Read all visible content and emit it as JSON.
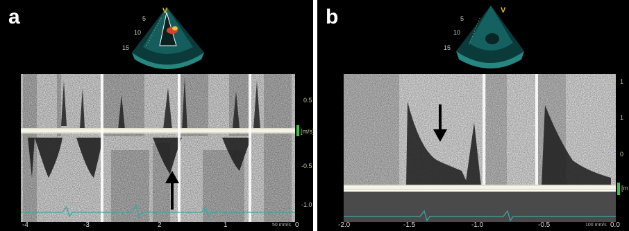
{
  "panels": [
    {
      "letter": "a",
      "unit": "[m/s]",
      "yticks": [
        "0.5",
        "-0.5",
        "-1.0"
      ],
      "xticks": [
        "-4",
        "-3",
        "2",
        "1",
        "0"
      ],
      "sweep_speed": "50 mm/s",
      "echo_marker": "V",
      "depth_ticks": [
        "5",
        "10",
        "15"
      ],
      "arrow_direction": "up"
    },
    {
      "letter": "b",
      "unit": "[m",
      "yticks": [
        "1",
        "1",
        "0"
      ],
      "xticks": [
        "-2.0",
        "-1.5",
        "-1.0",
        "-0.5",
        "0.0"
      ],
      "sweep_speed": "100 mm/s",
      "echo_marker": "V",
      "depth_ticks": [
        "5",
        "10",
        "15"
      ],
      "arrow_direction": "down"
    }
  ],
  "colors": {
    "baseline": "#e0e0c8",
    "ecg": "#3aa6a6",
    "scale_bar": "#35c53a",
    "label_text": "#ffffff",
    "tick_text": "#c8c49a",
    "marker": "#e6c021"
  }
}
